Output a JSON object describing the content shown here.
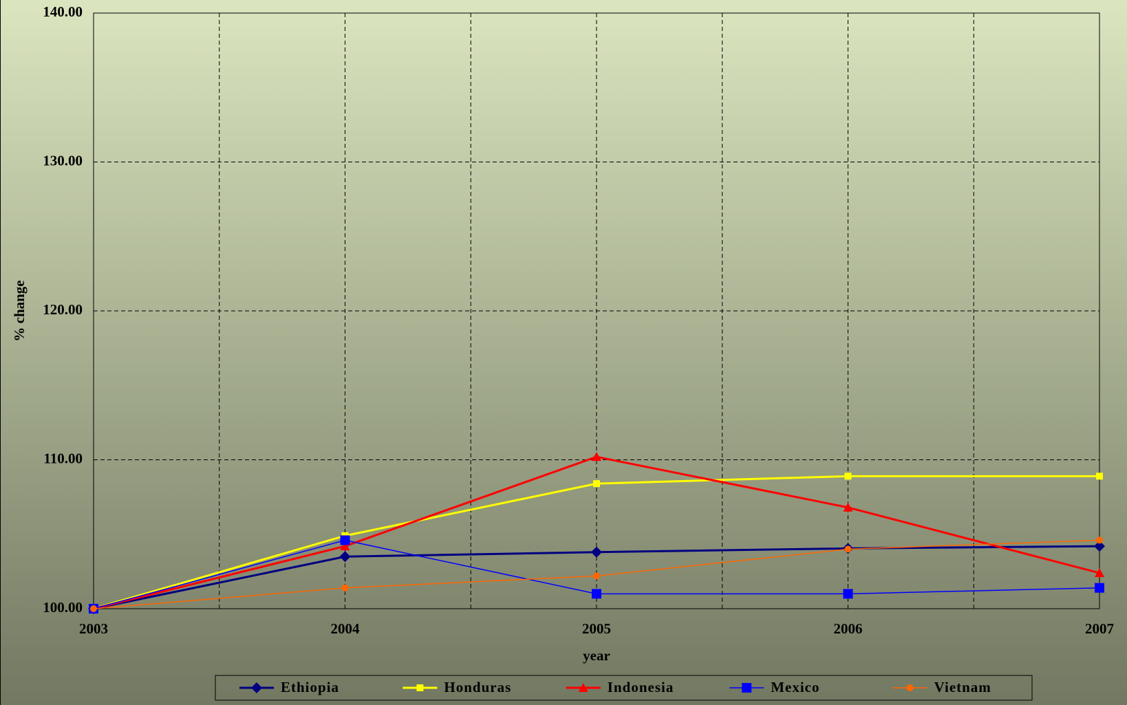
{
  "chart_data": {
    "type": "line",
    "x_label": "year",
    "y_label": "% change",
    "x": [
      2003,
      2004,
      2005,
      2006,
      2007
    ],
    "xlim": [
      2003,
      2007
    ],
    "xticks": [
      2003,
      2004,
      2005,
      2006,
      2007
    ],
    "ylim": [
      100,
      140
    ],
    "yticks": [
      {
        "value": 100,
        "label": "100.00"
      },
      {
        "value": 110,
        "label": "110.00"
      },
      {
        "value": 120,
        "label": "120.00"
      },
      {
        "value": 130,
        "label": "130.00"
      },
      {
        "value": 140,
        "label": "140.00"
      }
    ],
    "grid": true,
    "legend": "bottom",
    "series": [
      {
        "name": "Ethiopia",
        "color": "#000080",
        "marker": "diamond",
        "values": [
          100,
          103.5,
          103.8,
          104.05,
          104.2
        ]
      },
      {
        "name": "Honduras",
        "color": "#ffff00",
        "marker": "square",
        "values": [
          100,
          104.9,
          108.4,
          108.9,
          108.9
        ]
      },
      {
        "name": "Indonesia",
        "color": "#ff0000",
        "marker": "triangle",
        "values": [
          100,
          104.2,
          110.2,
          106.8,
          102.4
        ]
      },
      {
        "name": "Mexico",
        "color": "#0000ff",
        "marker": "bigsquare",
        "values": [
          100,
          104.6,
          101.0,
          101.0,
          101.4
        ]
      },
      {
        "name": "Vietnam",
        "color": "#ff6600",
        "marker": "circle",
        "values": [
          100,
          101.4,
          102.2,
          104.0,
          104.6
        ]
      }
    ]
  }
}
